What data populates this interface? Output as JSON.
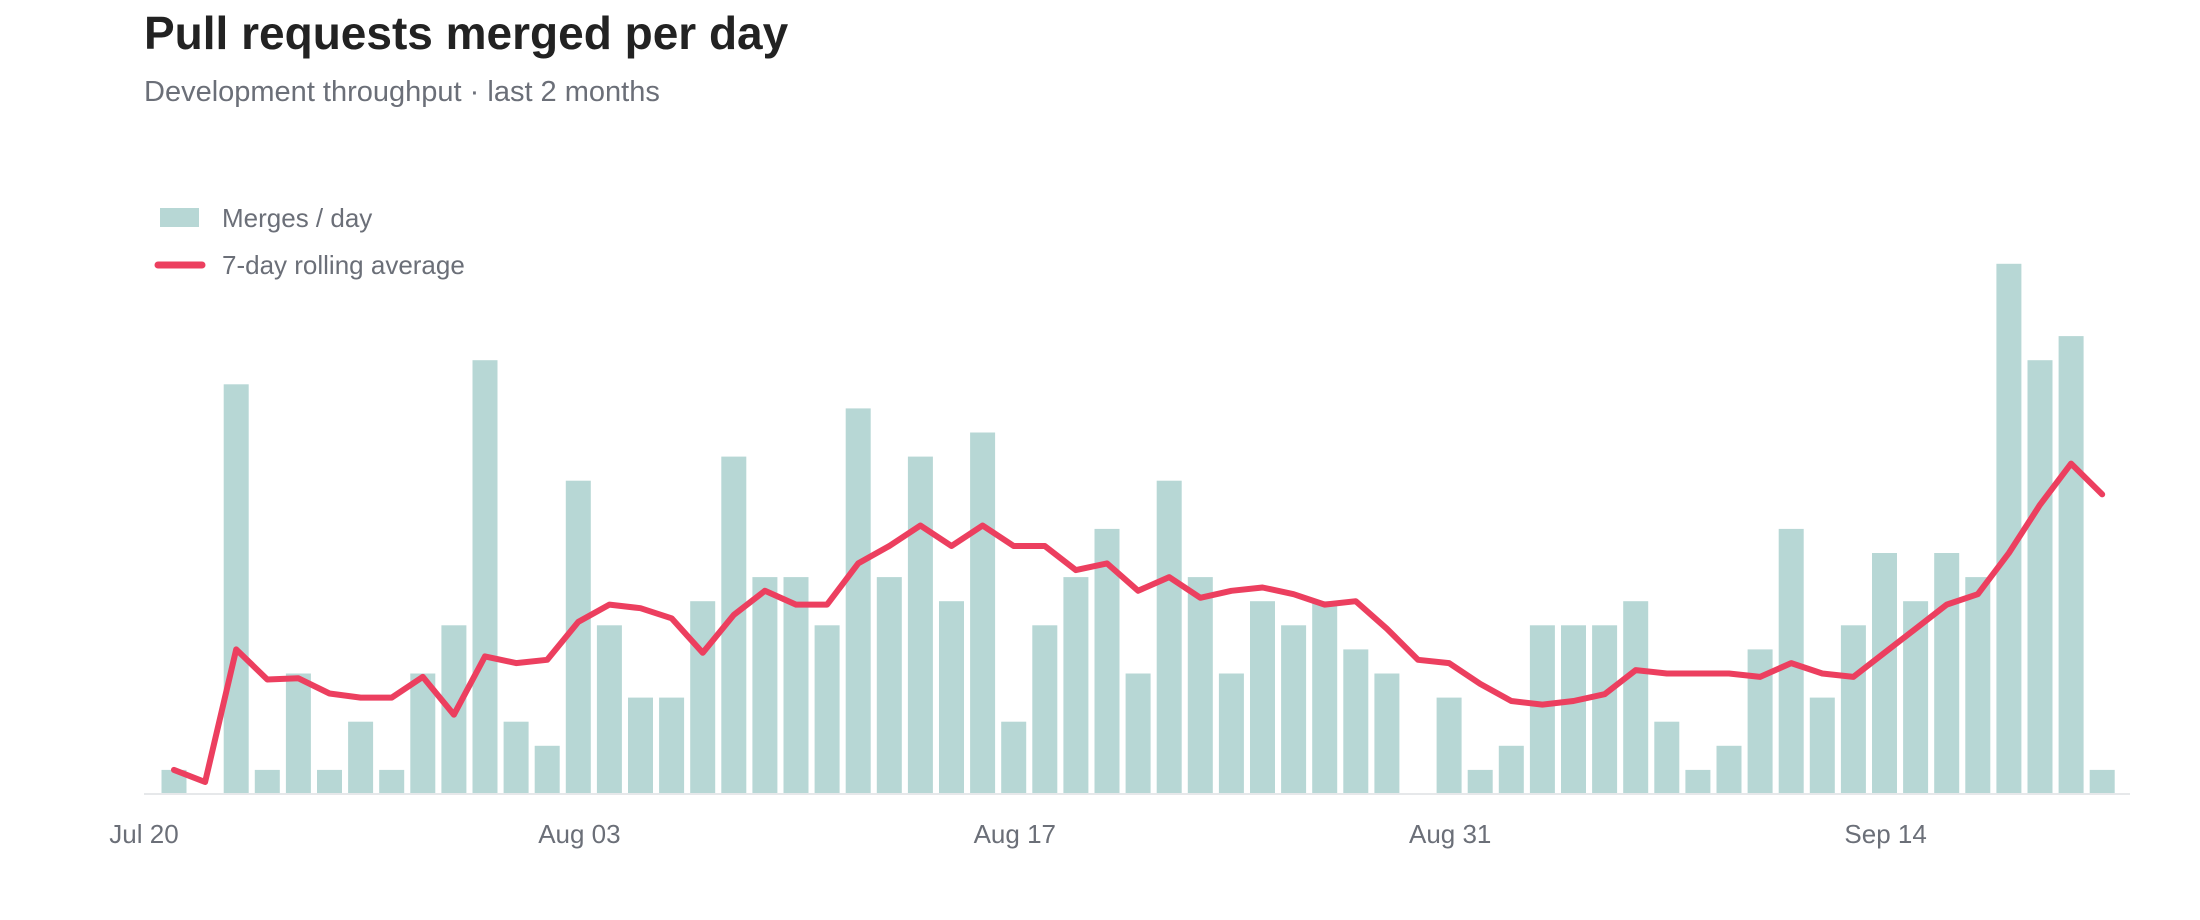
{
  "chart_data": {
    "type": "bar",
    "title": "Pull requests merged per day",
    "subtitle": "Development throughput · last 2 months",
    "xlabel": "",
    "ylabel": "",
    "x_start": "Jul 20",
    "x_ticks": [
      "Jul 20",
      "Aug 03",
      "Aug 17",
      "Aug 31",
      "Sep 14"
    ],
    "ylim": [
      0,
      23
    ],
    "grid": false,
    "legend_position": "top-left",
    "colors": {
      "bars": "#b7d7d5",
      "line": "#ec3f5f",
      "axis": "#e6e8ea"
    },
    "series": [
      {
        "name": "Merges / day",
        "kind": "bar",
        "values": [
          1,
          0,
          17,
          1,
          5,
          1,
          3,
          1,
          5,
          7,
          18,
          3,
          2,
          13,
          7,
          4,
          4,
          8,
          14,
          9,
          9,
          7,
          16,
          9,
          14,
          8,
          15,
          3,
          7,
          9,
          11,
          5,
          13,
          9,
          5,
          8,
          7,
          8,
          6,
          5,
          0,
          4,
          1,
          2,
          7,
          7,
          7,
          8,
          3,
          1,
          2,
          6,
          11,
          4,
          7,
          10,
          8,
          10,
          9,
          22,
          18,
          19,
          1
        ]
      },
      {
        "name": "7-day rolling average",
        "kind": "line",
        "values": [
          1.0,
          0.5,
          6.0,
          4.75,
          4.8,
          4.17,
          4.0,
          4.0,
          4.86,
          3.29,
          5.71,
          5.43,
          5.57,
          7.14,
          7.86,
          7.71,
          7.29,
          5.86,
          7.43,
          8.43,
          7.86,
          7.86,
          9.57,
          10.29,
          11.14,
          10.29,
          11.14,
          10.29,
          10.29,
          9.29,
          9.57,
          8.43,
          9.0,
          8.14,
          8.43,
          8.57,
          8.29,
          7.86,
          8.0,
          6.86,
          5.57,
          5.43,
          4.57,
          3.86,
          3.71,
          3.86,
          4.14,
          5.14,
          5.0,
          5.0,
          5.0,
          4.86,
          5.43,
          5.0,
          4.86,
          5.86,
          6.86,
          7.86,
          8.29,
          10.0,
          12.0,
          13.71,
          12.43
        ]
      }
    ]
  }
}
